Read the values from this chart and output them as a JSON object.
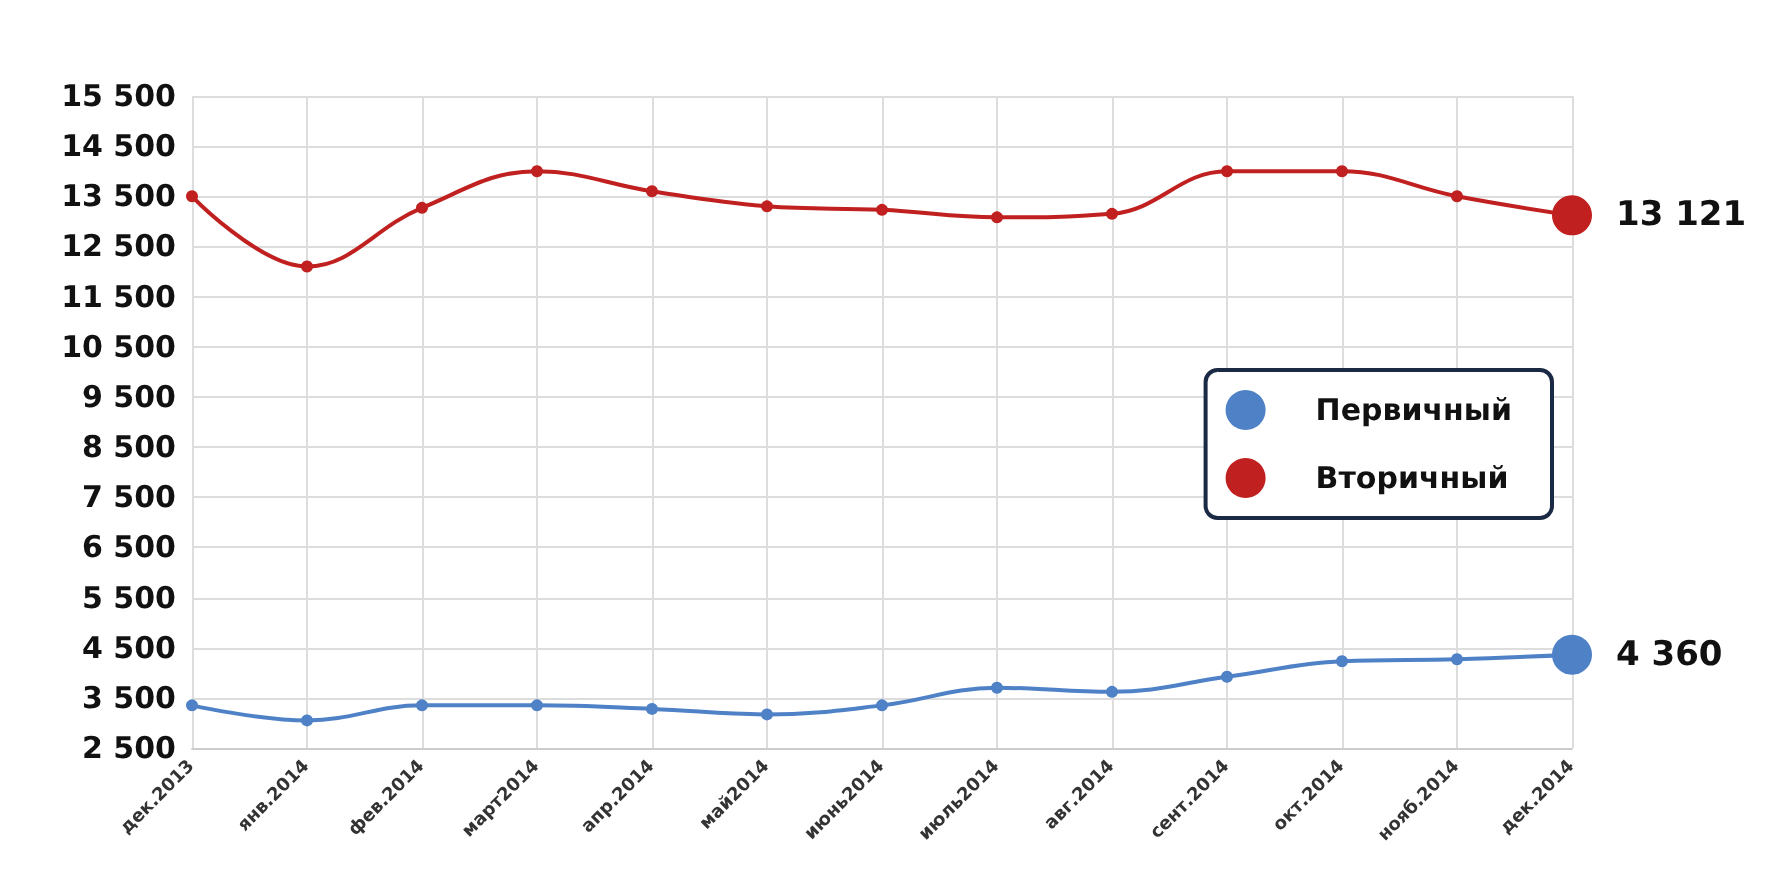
{
  "chart_data": {
    "type": "line",
    "categories": [
      "дек.2013",
      "янв.2014",
      "фев.2014",
      "март2014",
      "апр.2014",
      "май2014",
      "июнь2014",
      "июль2014",
      "авг.2014",
      "сент.2014",
      "окт.2014",
      "нояб.2014",
      "дек.2014"
    ],
    "series": [
      {
        "name": "Первичный",
        "color": "#4f81c7",
        "values": [
          3350,
          3050,
          3350,
          3350,
          3280,
          3170,
          3350,
          3700,
          3620,
          3920,
          4230,
          4270,
          4360
        ],
        "value_labels": [
          null,
          null,
          null,
          null,
          null,
          null,
          null,
          null,
          null,
          null,
          null,
          null,
          "4 360"
        ]
      },
      {
        "name": "Вторичный",
        "color": "#c0201f",
        "values": [
          13500,
          12100,
          13270,
          14000,
          13600,
          13300,
          13230,
          13080,
          13150,
          14000,
          14000,
          13500,
          13121
        ],
        "value_labels": [
          null,
          null,
          null,
          null,
          null,
          null,
          null,
          null,
          null,
          null,
          null,
          null,
          "13 121"
        ]
      }
    ],
    "ylim": [
      2500,
      15500
    ],
    "yticks": [
      2500,
      3500,
      4500,
      5500,
      6500,
      7500,
      8500,
      9500,
      10500,
      11500,
      12500,
      13500,
      14500,
      15500
    ],
    "grid": true,
    "legend": "right",
    "marker": "circle",
    "line_style": "solid"
  }
}
